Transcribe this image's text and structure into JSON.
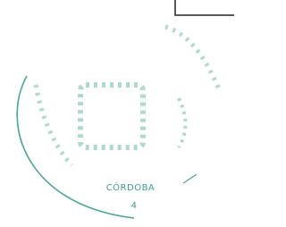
{
  "stamp": {
    "city": "CÓRDOBA",
    "number": "4"
  }
}
